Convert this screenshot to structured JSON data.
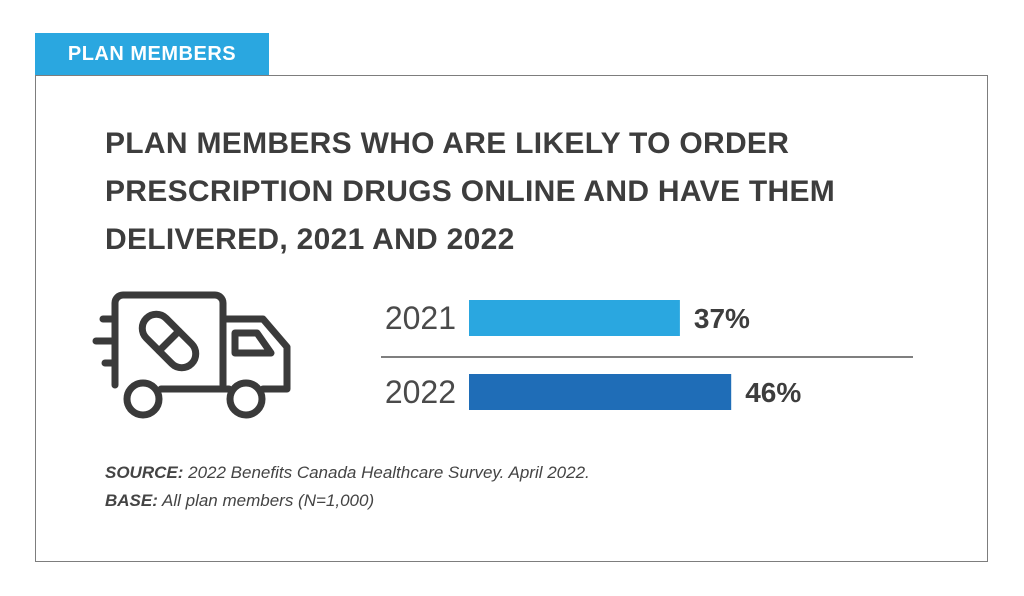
{
  "tag": {
    "label": "PLAN MEMBERS"
  },
  "title": "PLAN MEMBERS WHO ARE LIKELY TO ORDER PRESCRIPTION DRUGS ONLINE AND HAVE THEM DELIVERED, 2021 AND 2022",
  "icon": "delivery-truck-pill-icon",
  "colors": {
    "tag": "#2aa7e0",
    "bar_2021": "#2aa7e0",
    "bar_2022": "#1f6db7",
    "text": "#3d3d3d"
  },
  "chart_data": {
    "type": "bar",
    "orientation": "horizontal",
    "categories": [
      "2021",
      "2022"
    ],
    "values": [
      37,
      46
    ],
    "value_labels": [
      "37%",
      "46%"
    ],
    "unit": "%",
    "xlim": [
      0,
      100
    ],
    "grid": false
  },
  "footer": {
    "source_label": "SOURCE:",
    "source_text": " 2022 Benefits Canada Healthcare Survey. April 2022.",
    "base_label": "BASE:",
    "base_text": " All plan members (N=1,000)"
  }
}
